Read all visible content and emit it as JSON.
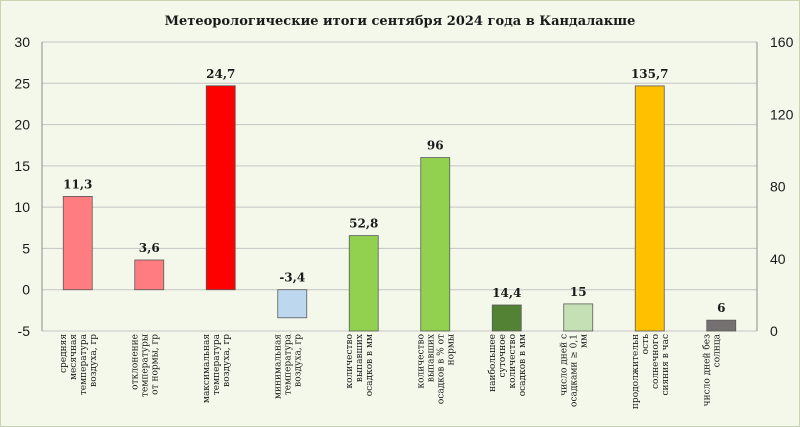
{
  "chart_data": {
    "type": "bar",
    "title": "Метеорологические итоги сентября 2024 года в Кандалакше",
    "y_left": {
      "min": -5,
      "max": 30,
      "ticks": [
        -5,
        0,
        5,
        10,
        15,
        20,
        25,
        30
      ],
      "tick_labels": [
        "-5",
        "0",
        "5",
        "10",
        "15",
        "20",
        "25",
        "30"
      ]
    },
    "y_right": {
      "min": 0,
      "max": 160,
      "ticks": [
        0,
        40,
        80,
        120,
        160
      ],
      "tick_labels": [
        "0",
        "40",
        "80",
        "120",
        "160"
      ]
    },
    "grid": true,
    "legend": "none",
    "categories": [
      {
        "label_lines": [
          "средняя",
          "месячная",
          "температура",
          "воздуха, гр"
        ],
        "value": 11.3,
        "value_label": "11,3",
        "axis": "left",
        "color": "#ff7c80"
      },
      {
        "label_lines": [
          "отклонение",
          "температуры",
          "от нормы, гр"
        ],
        "value": 3.6,
        "value_label": "3,6",
        "axis": "left",
        "color": "#ff7c80"
      },
      {
        "label_lines": [
          "максимальная",
          "температура",
          "воздуха, гр"
        ],
        "value": 24.7,
        "value_label": "24,7",
        "axis": "left",
        "color": "#ff0000"
      },
      {
        "label_lines": [
          "минимальная",
          "температура",
          "воздуха, гр"
        ],
        "value": -3.4,
        "value_label": "-3,4",
        "axis": "left",
        "color": "#bdd7ee"
      },
      {
        "label_lines": [
          "количество",
          "выпавших",
          "осадков в мм"
        ],
        "value": 52.8,
        "value_label": "52,8",
        "axis": "right",
        "color": "#92d050"
      },
      {
        "label_lines": [
          "количество",
          "выпавших",
          "осадков в % от",
          "нормы"
        ],
        "value": 96,
        "value_label": "96",
        "axis": "right",
        "color": "#92d050"
      },
      {
        "label_lines": [
          "наибольшее",
          "суточное",
          "количество",
          "осадков в мм"
        ],
        "value": 14.4,
        "value_label": "14,4",
        "axis": "right",
        "color": "#548235"
      },
      {
        "label_lines": [
          "число дней с",
          "осадками ≥ 0,1",
          "мм"
        ],
        "value": 15,
        "value_label": "15",
        "axis": "right",
        "color": "#c5e0b4"
      },
      {
        "label_lines": [
          "продолжительн",
          "ость",
          "солнечного",
          "сияния в час"
        ],
        "value": 135.7,
        "value_label": "135,7",
        "axis": "right",
        "color": "#ffc000"
      },
      {
        "label_lines": [
          "число дней без",
          "солнца"
        ],
        "value": 6,
        "value_label": "6",
        "axis": "right",
        "color": "#767171"
      }
    ]
  }
}
